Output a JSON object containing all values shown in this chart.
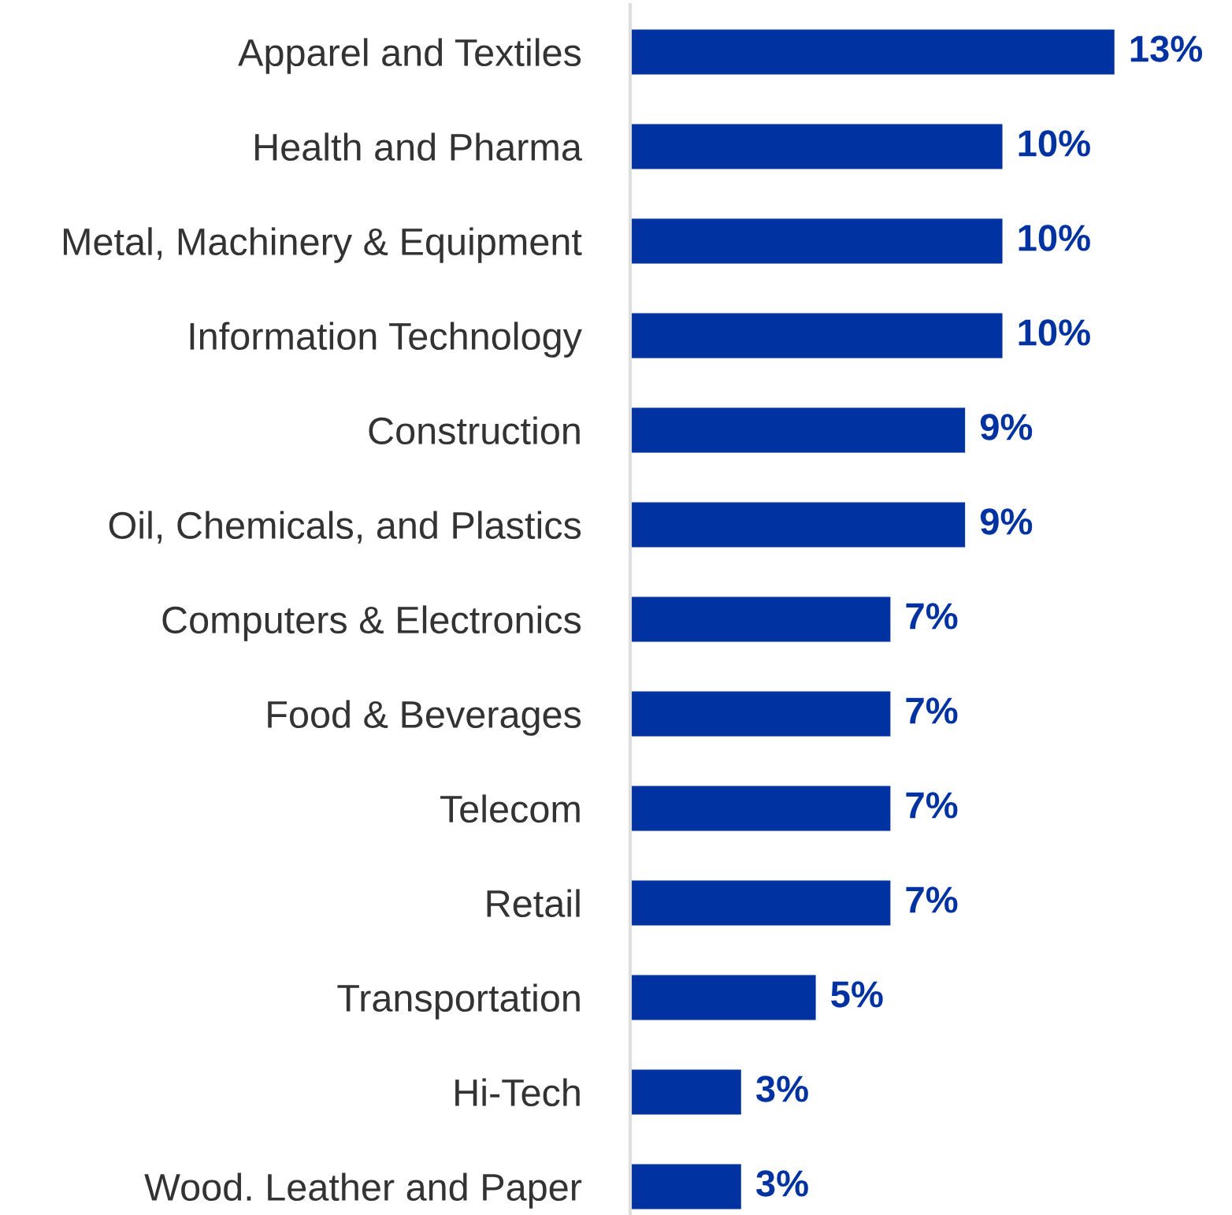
{
  "chart_data": {
    "type": "bar",
    "orientation": "horizontal",
    "categories": [
      "Apparel and Textiles",
      "Health and Pharma",
      "Metal, Machinery & Equipment",
      "Information Technology",
      "Construction",
      "Oil, Chemicals, and Plastics",
      "Computers & Electronics",
      "Food & Beverages",
      "Telecom",
      "Retail",
      "Transportation",
      "Hi-Tech",
      "Wood. Leather and Paper"
    ],
    "values": [
      13,
      10,
      10,
      10,
      9,
      9,
      7,
      7,
      7,
      7,
      5,
      3,
      3
    ],
    "value_labels": [
      "13%",
      "10%",
      "10%",
      "10%",
      "9%",
      "9%",
      "7%",
      "7%",
      "7%",
      "7%",
      "5%",
      "3%",
      "3%"
    ],
    "color": "#0033a1"
  }
}
